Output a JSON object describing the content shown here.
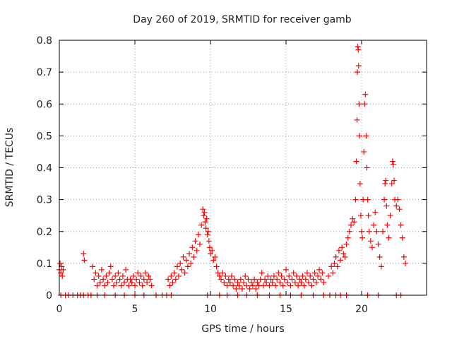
{
  "chart_data": {
    "type": "scatter",
    "title": "Day 260 of 2019, SRMTID for receiver gamb",
    "xlabel": "GPS time / hours",
    "ylabel": "SRMTID / TECUs",
    "xlim": [
      0,
      24.3
    ],
    "ylim": [
      0,
      0.8
    ],
    "xticks": [
      0,
      5,
      10,
      15,
      20
    ],
    "yticks": [
      0,
      0.1,
      0.2,
      0.3,
      0.4,
      0.5,
      0.6,
      0.7,
      0.8
    ],
    "grid": true,
    "marker": "+",
    "color": "#ff0000",
    "series": [
      {
        "name": "SRMTID",
        "points": [
          [
            0.0,
            0.08
          ],
          [
            0.05,
            0.1
          ],
          [
            0.1,
            0.07
          ],
          [
            0.15,
            0.09
          ],
          [
            0.2,
            0.06
          ],
          [
            0.25,
            0.08
          ],
          [
            0.1,
            0.0
          ],
          [
            0.4,
            0.0
          ],
          [
            0.6,
            0.0
          ],
          [
            0.9,
            0.0
          ],
          [
            1.2,
            0.0
          ],
          [
            1.4,
            0.0
          ],
          [
            1.6,
            0.0
          ],
          [
            1.9,
            0.0
          ],
          [
            2.1,
            0.0
          ],
          [
            1.6,
            0.13
          ],
          [
            1.65,
            0.11
          ],
          [
            2.2,
            0.09
          ],
          [
            2.3,
            0.05
          ],
          [
            2.4,
            0.07
          ],
          [
            2.5,
            0.03
          ],
          [
            2.6,
            0.06
          ],
          [
            2.7,
            0.04
          ],
          [
            2.8,
            0.08
          ],
          [
            2.9,
            0.05
          ],
          [
            3.0,
            0.03
          ],
          [
            3.1,
            0.06
          ],
          [
            3.2,
            0.04
          ],
          [
            3.3,
            0.07
          ],
          [
            3.4,
            0.09
          ],
          [
            3.5,
            0.05
          ],
          [
            3.6,
            0.03
          ],
          [
            3.7,
            0.06
          ],
          [
            3.8,
            0.04
          ],
          [
            3.9,
            0.07
          ],
          [
            4.0,
            0.05
          ],
          [
            4.1,
            0.03
          ],
          [
            4.2,
            0.06
          ],
          [
            4.3,
            0.04
          ],
          [
            4.4,
            0.08
          ],
          [
            4.5,
            0.05
          ],
          [
            4.6,
            0.03
          ],
          [
            4.7,
            0.05
          ],
          [
            4.8,
            0.04
          ],
          [
            4.9,
            0.06
          ],
          [
            5.0,
            0.03
          ],
          [
            5.1,
            0.05
          ],
          [
            5.2,
            0.07
          ],
          [
            5.3,
            0.04
          ],
          [
            5.4,
            0.06
          ],
          [
            5.5,
            0.03
          ],
          [
            5.6,
            0.05
          ],
          [
            5.7,
            0.07
          ],
          [
            5.8,
            0.04
          ],
          [
            5.9,
            0.06
          ],
          [
            6.0,
            0.05
          ],
          [
            6.1,
            0.03
          ],
          [
            2.5,
            0.0
          ],
          [
            3.0,
            0.0
          ],
          [
            3.7,
            0.0
          ],
          [
            4.3,
            0.0
          ],
          [
            5.0,
            0.0
          ],
          [
            5.6,
            0.0
          ],
          [
            6.4,
            0.0
          ],
          [
            6.8,
            0.0
          ],
          [
            7.1,
            0.0
          ],
          [
            7.2,
            0.05
          ],
          [
            7.3,
            0.03
          ],
          [
            7.4,
            0.06
          ],
          [
            7.5,
            0.04
          ],
          [
            7.6,
            0.07
          ],
          [
            7.7,
            0.05
          ],
          [
            7.8,
            0.09
          ],
          [
            7.9,
            0.06
          ],
          [
            8.0,
            0.1
          ],
          [
            8.1,
            0.08
          ],
          [
            8.2,
            0.12
          ],
          [
            8.3,
            0.07
          ],
          [
            8.4,
            0.11
          ],
          [
            8.5,
            0.09
          ],
          [
            8.6,
            0.13
          ],
          [
            8.7,
            0.1
          ],
          [
            8.8,
            0.15
          ],
          [
            8.9,
            0.12
          ],
          [
            9.0,
            0.17
          ],
          [
            9.1,
            0.14
          ],
          [
            9.2,
            0.19
          ],
          [
            9.3,
            0.16
          ],
          [
            9.4,
            0.22
          ],
          [
            9.5,
            0.27
          ],
          [
            9.55,
            0.25
          ],
          [
            9.6,
            0.26
          ],
          [
            9.65,
            0.23
          ],
          [
            9.7,
            0.21
          ],
          [
            9.75,
            0.24
          ],
          [
            9.8,
            0.19
          ],
          [
            9.85,
            0.2
          ],
          [
            9.9,
            0.17
          ],
          [
            9.95,
            0.15
          ],
          [
            10.0,
            0.13
          ],
          [
            10.1,
            0.14
          ],
          [
            10.2,
            0.11
          ],
          [
            10.3,
            0.12
          ],
          [
            10.4,
            0.09
          ],
          [
            10.5,
            0.07
          ],
          [
            10.6,
            0.06
          ],
          [
            10.7,
            0.05
          ],
          [
            10.8,
            0.07
          ],
          [
            10.9,
            0.04
          ],
          [
            11.0,
            0.06
          ],
          [
            11.1,
            0.03
          ],
          [
            11.2,
            0.05
          ],
          [
            11.3,
            0.04
          ],
          [
            11.4,
            0.06
          ],
          [
            11.5,
            0.03
          ],
          [
            11.6,
            0.05
          ],
          [
            11.7,
            0.02
          ],
          [
            11.8,
            0.04
          ],
          [
            11.9,
            0.03
          ],
          [
            12.0,
            0.05
          ],
          [
            12.1,
            0.02
          ],
          [
            12.2,
            0.04
          ],
          [
            12.3,
            0.06
          ],
          [
            12.4,
            0.03
          ],
          [
            12.5,
            0.05
          ],
          [
            12.6,
            0.02
          ],
          [
            12.7,
            0.04
          ],
          [
            12.8,
            0.03
          ],
          [
            12.9,
            0.05
          ],
          [
            13.0,
            0.02
          ],
          [
            13.1,
            0.04
          ],
          [
            13.2,
            0.03
          ],
          [
            13.3,
            0.05
          ],
          [
            13.4,
            0.07
          ],
          [
            13.5,
            0.03
          ],
          [
            13.6,
            0.05
          ],
          [
            13.7,
            0.04
          ],
          [
            13.8,
            0.06
          ],
          [
            13.9,
            0.03
          ],
          [
            14.0,
            0.05
          ],
          [
            14.1,
            0.04
          ],
          [
            14.2,
            0.06
          ],
          [
            14.3,
            0.03
          ],
          [
            14.4,
            0.05
          ],
          [
            14.5,
            0.07
          ],
          [
            14.6,
            0.04
          ],
          [
            14.7,
            0.06
          ],
          [
            14.8,
            0.03
          ],
          [
            14.9,
            0.05
          ],
          [
            15.0,
            0.08
          ],
          [
            15.1,
            0.04
          ],
          [
            15.2,
            0.06
          ],
          [
            15.3,
            0.03
          ],
          [
            15.4,
            0.05
          ],
          [
            15.5,
            0.07
          ],
          [
            15.6,
            0.04
          ],
          [
            15.7,
            0.06
          ],
          [
            15.8,
            0.03
          ],
          [
            15.9,
            0.05
          ],
          [
            16.0,
            0.04
          ],
          [
            16.1,
            0.06
          ],
          [
            16.2,
            0.03
          ],
          [
            16.3,
            0.05
          ],
          [
            16.4,
            0.07
          ],
          [
            16.5,
            0.04
          ],
          [
            16.6,
            0.06
          ],
          [
            16.7,
            0.03
          ],
          [
            16.8,
            0.05
          ],
          [
            16.9,
            0.07
          ],
          [
            17.0,
            0.04
          ],
          [
            17.1,
            0.06
          ],
          [
            17.2,
            0.08
          ],
          [
            17.3,
            0.05
          ],
          [
            17.4,
            0.07
          ],
          [
            17.5,
            0.04
          ],
          [
            7.4,
            0.0
          ],
          [
            9.8,
            0.0
          ],
          [
            10.6,
            0.0
          ],
          [
            11.1,
            0.0
          ],
          [
            11.8,
            0.0
          ],
          [
            12.4,
            0.0
          ],
          [
            13.1,
            0.0
          ],
          [
            13.9,
            0.0
          ],
          [
            14.6,
            0.0
          ],
          [
            15.3,
            0.0
          ],
          [
            16.0,
            0.0
          ],
          [
            16.8,
            0.0
          ],
          [
            17.5,
            0.0
          ],
          [
            17.9,
            0.0
          ],
          [
            18.3,
            0.0
          ],
          [
            18.6,
            0.0
          ],
          [
            17.8,
            0.06
          ],
          [
            18.0,
            0.09
          ],
          [
            18.1,
            0.07
          ],
          [
            18.2,
            0.1
          ],
          [
            18.3,
            0.12
          ],
          [
            18.4,
            0.09
          ],
          [
            18.5,
            0.14
          ],
          [
            18.6,
            0.11
          ],
          [
            18.7,
            0.15
          ],
          [
            18.8,
            0.13
          ],
          [
            18.9,
            0.12
          ],
          [
            19.0,
            0.16
          ],
          [
            19.1,
            0.18
          ],
          [
            19.2,
            0.2
          ],
          [
            19.3,
            0.22
          ],
          [
            19.4,
            0.24
          ],
          [
            19.5,
            0.23
          ],
          [
            19.6,
            0.3
          ],
          [
            19.65,
            0.42
          ],
          [
            19.7,
            0.55
          ],
          [
            19.72,
            0.7
          ],
          [
            19.75,
            0.78
          ],
          [
            19.78,
            0.77
          ],
          [
            19.8,
            0.72
          ],
          [
            19.83,
            0.6
          ],
          [
            19.86,
            0.5
          ],
          [
            19.9,
            0.35
          ],
          [
            19.95,
            0.25
          ],
          [
            20.0,
            0.2
          ],
          [
            20.05,
            0.18
          ],
          [
            20.1,
            0.3
          ],
          [
            20.15,
            0.45
          ],
          [
            20.2,
            0.6
          ],
          [
            20.25,
            0.63
          ],
          [
            20.3,
            0.5
          ],
          [
            20.35,
            0.4
          ],
          [
            20.4,
            0.3
          ],
          [
            20.45,
            0.25
          ],
          [
            20.5,
            0.2
          ],
          [
            20.6,
            0.17
          ],
          [
            20.7,
            0.15
          ],
          [
            20.8,
            0.22
          ],
          [
            20.9,
            0.26
          ],
          [
            21.0,
            0.2
          ],
          [
            21.1,
            0.16
          ],
          [
            21.2,
            0.12
          ],
          [
            21.3,
            0.09
          ],
          [
            21.4,
            0.2
          ],
          [
            21.5,
            0.3
          ],
          [
            21.55,
            0.35
          ],
          [
            21.6,
            0.36
          ],
          [
            21.65,
            0.28
          ],
          [
            21.7,
            0.22
          ],
          [
            21.8,
            0.18
          ],
          [
            21.9,
            0.25
          ],
          [
            22.0,
            0.35
          ],
          [
            22.05,
            0.42
          ],
          [
            22.1,
            0.41
          ],
          [
            22.15,
            0.36
          ],
          [
            22.2,
            0.3
          ],
          [
            22.3,
            0.28
          ],
          [
            22.4,
            0.3
          ],
          [
            22.5,
            0.27
          ],
          [
            22.6,
            0.22
          ],
          [
            22.7,
            0.18
          ],
          [
            22.8,
            0.12
          ],
          [
            22.9,
            0.1
          ],
          [
            19.0,
            0.0
          ],
          [
            20.4,
            0.0
          ],
          [
            21.1,
            0.0
          ],
          [
            22.3,
            0.0
          ],
          [
            22.6,
            0.0
          ]
        ]
      }
    ]
  }
}
